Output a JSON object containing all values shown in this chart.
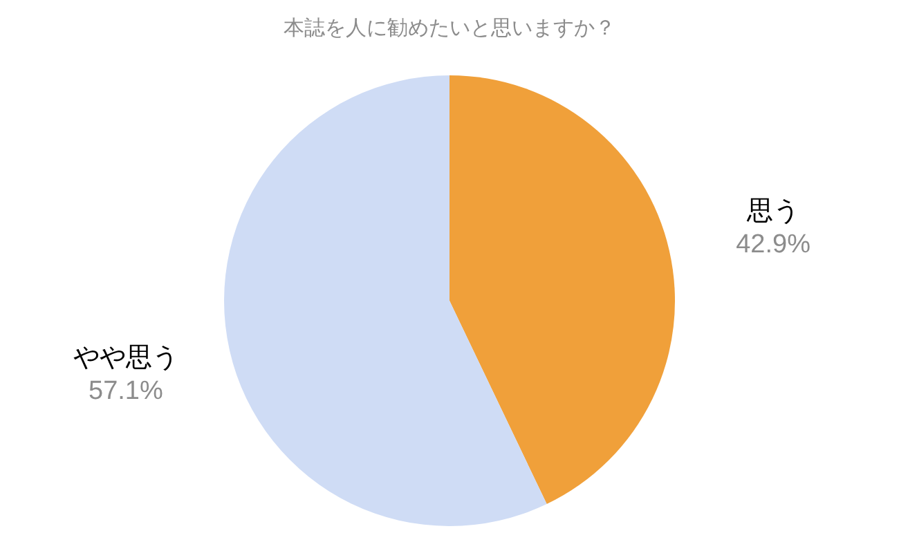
{
  "chart_data": {
    "type": "pie",
    "title": "本誌を人に勧めたいと思いますか？",
    "categories": [
      "思う",
      "やや思う"
    ],
    "values": [
      42.9,
      57.1
    ],
    "value_labels": [
      "42.9%",
      "57.1%"
    ],
    "colors": [
      "#f0a03a",
      "#cfdcf5"
    ],
    "legend": false
  }
}
